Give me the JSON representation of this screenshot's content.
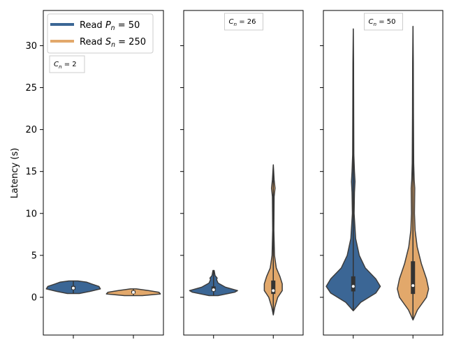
{
  "chart_data": {
    "type": "violin",
    "ylabel": "Latency (s)",
    "ylim": [
      -4.5,
      34.2
    ],
    "yticks": [
      0,
      5,
      10,
      15,
      20,
      25,
      30
    ],
    "legend": {
      "placement": "top-left (first panel)",
      "entries": [
        {
          "prefix": "Read ",
          "var": "P",
          "sub": "n",
          "suffix": " = 50",
          "color": "#3b6695"
        },
        {
          "prefix": "Read ",
          "var": "S",
          "sub": "n",
          "suffix": " = 250",
          "color": "#e2a86b"
        }
      ]
    },
    "colors": {
      "series_0": "#3b6695",
      "series_1": "#e2a86b",
      "outline": "#3c3c3c",
      "box": "#333333"
    },
    "panels": [
      {
        "annotation": {
          "var": "C",
          "sub": "n",
          "suffix": " = 2"
        },
        "violins": [
          {
            "series": 0,
            "min": 0.45,
            "max": 1.95,
            "q1": 0.9,
            "median": 1.1,
            "q3": 1.35,
            "density": [
              [
                0.45,
                0.2
              ],
              [
                0.7,
                0.55
              ],
              [
                1.0,
                0.9
              ],
              [
                1.3,
                0.85
              ],
              [
                1.6,
                0.6
              ],
              [
                1.8,
                0.45
              ],
              [
                1.95,
                0.15
              ]
            ]
          },
          {
            "series": 1,
            "min": 0.2,
            "max": 1.0,
            "q1": 0.45,
            "median": 0.6,
            "q3": 0.8,
            "density": [
              [
                0.2,
                0.3
              ],
              [
                0.4,
                0.9
              ],
              [
                0.6,
                0.85
              ],
              [
                0.8,
                0.5
              ],
              [
                1.0,
                0.1
              ]
            ]
          }
        ]
      },
      {
        "annotation": {
          "var": "C",
          "sub": "n",
          "suffix": " = 26"
        },
        "violins": [
          {
            "series": 0,
            "min": 0.2,
            "max": 3.2,
            "q1": 0.7,
            "median": 0.9,
            "q3": 1.3,
            "density": [
              [
                0.2,
                0.15
              ],
              [
                0.6,
                0.7
              ],
              [
                0.8,
                0.8
              ],
              [
                1.2,
                0.4
              ],
              [
                1.7,
                0.15
              ],
              [
                2.1,
                0.1
              ],
              [
                2.3,
                0.12
              ],
              [
                2.6,
                0.05
              ],
              [
                3.2,
                0.02
              ]
            ]
          },
          {
            "series": 1,
            "min": -2.1,
            "max": 15.8,
            "q1": 0.4,
            "median": 0.8,
            "q3": 2.0,
            "density": [
              [
                -2.1,
                0.0
              ],
              [
                -1.2,
                0.05
              ],
              [
                0.0,
                0.15
              ],
              [
                0.8,
                0.3
              ],
              [
                1.6,
                0.3
              ],
              [
                2.5,
                0.22
              ],
              [
                3.5,
                0.1
              ],
              [
                5.0,
                0.04
              ],
              [
                8.0,
                0.02
              ],
              [
                12.0,
                0.03
              ],
              [
                13.0,
                0.06
              ],
              [
                14.0,
                0.03
              ],
              [
                15.8,
                0.0
              ]
            ]
          }
        ]
      },
      {
        "annotation": {
          "var": "C",
          "sub": "n",
          "suffix": " = 50"
        },
        "violins": [
          {
            "series": 0,
            "min": -1.6,
            "max": 32.0,
            "q1": 0.7,
            "median": 1.3,
            "q3": 2.5,
            "density": [
              [
                -1.6,
                0.0
              ],
              [
                -0.6,
                0.25
              ],
              [
                0.5,
                0.75
              ],
              [
                1.3,
                0.9
              ],
              [
                2.2,
                0.75
              ],
              [
                3.5,
                0.4
              ],
              [
                5.0,
                0.2
              ],
              [
                7.0,
                0.08
              ],
              [
                10.0,
                0.03
              ],
              [
                12.5,
                0.04
              ],
              [
                13.8,
                0.06
              ],
              [
                15.0,
                0.04
              ],
              [
                17.0,
                0.02
              ],
              [
                22.0,
                0.015
              ],
              [
                28.0,
                0.01
              ],
              [
                32.0,
                0.0
              ]
            ]
          },
          {
            "series": 1,
            "min": -2.7,
            "max": 32.3,
            "q1": 0.4,
            "median": 1.4,
            "q3": 4.3,
            "density": [
              [
                -2.7,
                0.0
              ],
              [
                -1.5,
                0.15
              ],
              [
                0.0,
                0.45
              ],
              [
                1.0,
                0.52
              ],
              [
                2.2,
                0.45
              ],
              [
                4.0,
                0.28
              ],
              [
                6.0,
                0.14
              ],
              [
                8.0,
                0.07
              ],
              [
                10.0,
                0.05
              ],
              [
                13.0,
                0.06
              ],
              [
                14.0,
                0.04
              ],
              [
                16.0,
                0.025
              ],
              [
                22.0,
                0.015
              ],
              [
                28.0,
                0.01
              ],
              [
                32.3,
                0.0
              ]
            ]
          }
        ]
      }
    ]
  }
}
